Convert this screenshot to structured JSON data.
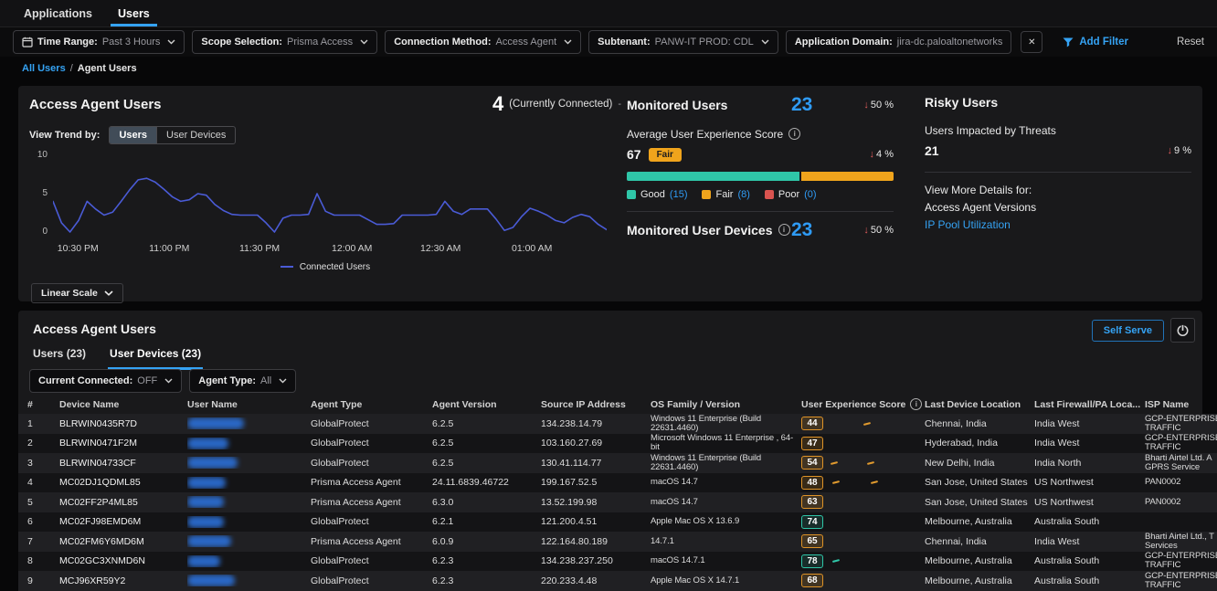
{
  "icons": {
    "down_arrow": "↓",
    "info": "i",
    "close": "✕"
  },
  "colors": {
    "accent": "#35a3f4",
    "value_blue": "#2f9bf5",
    "chart_line": "#4a5bd6",
    "good": "#2fc6a8",
    "fair": "#f0a41c",
    "poor": "#d9534f",
    "trend_down": "#e25d5d"
  },
  "app": {
    "tabs": [
      {
        "label": "Applications",
        "active": false
      },
      {
        "label": "Users",
        "active": true
      }
    ],
    "filter_bar": {
      "pills": [
        {
          "label": "Time Range:",
          "value": "Past 3 Hours"
        },
        {
          "label": "Scope Selection:",
          "value": "Prisma Access"
        },
        {
          "label": "Connection Method:",
          "value": "Access Agent"
        },
        {
          "label": "Subtenant:",
          "value": "PANW-IT PROD: CDL"
        },
        {
          "label": "Application Domain:",
          "value": "jira-dc.paloaltonetworks"
        }
      ],
      "add_filter_label": "Add Filter",
      "reset_label": "Reset"
    },
    "breadcrumb": {
      "parent": "All Users",
      "separator": "/",
      "current": "Agent Users"
    }
  },
  "overview": {
    "title": "Access Agent Users",
    "connected_value": "4",
    "connected_label": "(Currently Connected)",
    "connected_trend": "-",
    "view_trend_label": "View Trend by:",
    "trend_options": [
      {
        "label": "Users",
        "active": true
      },
      {
        "label": "User Devices",
        "active": false
      }
    ],
    "scale_button": "Linear Scale",
    "chart_data": {
      "type": "line",
      "title": "Connected Users trend",
      "xlabel": "",
      "ylabel": "",
      "ylim": [
        0,
        10
      ],
      "grid": false,
      "legend_position": "bottom",
      "y_ticks": [
        10,
        5,
        0
      ],
      "x_ticks": [
        {
          "label": "10:30 PM",
          "pos": 4.5
        },
        {
          "label": "11:00 PM",
          "pos": 21
        },
        {
          "label": "11:30 PM",
          "pos": 37.3
        },
        {
          "label": "12:00 AM",
          "pos": 54
        },
        {
          "label": "12:30 AM",
          "pos": 70
        },
        {
          "label": "01:00 AM",
          "pos": 86.5
        }
      ],
      "series": [
        {
          "name": "Connected Users",
          "color": "#4a5bd6",
          "values": [
            4,
            1.2,
            0,
            1.5,
            4,
            3,
            2.2,
            2.6,
            4,
            5.5,
            6.8,
            7,
            6.5,
            5.6,
            4.6,
            4,
            4.2,
            5,
            4.8,
            3.6,
            2.8,
            2.3,
            2.2,
            2.2,
            2.2,
            1.2,
            0,
            1.8,
            2.2,
            2.2,
            2.3,
            5,
            2.7,
            2.2,
            2.2,
            2.2,
            2.2,
            1.6,
            1,
            1,
            1.1,
            2.2,
            2.2,
            2.2,
            2.2,
            2.3,
            4,
            2.7,
            2.3,
            3,
            3,
            3,
            1.7,
            0.2,
            0.6,
            2,
            3.1,
            2.7,
            2.2,
            1.5,
            1.2,
            1.9,
            2.3,
            2,
            1,
            0.3
          ]
        }
      ]
    }
  },
  "monitored": {
    "users_title": "Monitored Users",
    "users_value": "23",
    "users_trend": "50 %",
    "avg_title": "Average User Experience Score",
    "avg_value": "67",
    "avg_badge": "Fair",
    "avg_trend": "4 %",
    "segments": [
      {
        "label": "Good",
        "count": 15,
        "color": "#2fc6a8"
      },
      {
        "label": "Fair",
        "count": 8,
        "color": "#f0a41c"
      },
      {
        "label": "Poor",
        "count": 0,
        "color": "#d9534f"
      }
    ],
    "devices_title": "Monitored User Devices",
    "devices_value": "23",
    "devices_trend": "50 %"
  },
  "risky": {
    "title": "Risky Users",
    "impacted_label": "Users Impacted by Threats",
    "impacted_value": "21",
    "impacted_trend": "9 %",
    "more_label": "View More Details for:",
    "link_versions": "Access Agent Versions",
    "link_ip_pool": "IP Pool Utilization"
  },
  "table_panel": {
    "title": "Access Agent Users",
    "tabs": [
      {
        "label": "Users (23)",
        "active": false
      },
      {
        "label": "User Devices (23)",
        "active": true
      }
    ],
    "filters": [
      {
        "label": "Current Connected:",
        "value": "OFF"
      },
      {
        "label": "Agent Type:",
        "value": "All"
      }
    ],
    "self_serve_label": "Self Serve",
    "columns": [
      "#",
      "Device Name",
      "User Name",
      "Agent Type",
      "Agent Version",
      "Source IP Address",
      "OS Family / Version",
      "User Experience Score",
      "Last Device Location",
      "Last Firewall/PA Loca...",
      "ISP Name"
    ],
    "rows": [
      {
        "num": "1",
        "device": "BLRWIN0435R7D",
        "user_redacted_width": 62,
        "agent_type": "GlobalProtect",
        "agent_version": "6.2.5",
        "source_ip": "134.238.14.79",
        "os": "Windows 11 Enterprise (Build 22631.4460)",
        "score": "44",
        "score_level": "fair",
        "spark": [
          44
        ],
        "location": "Chennai, India",
        "firewall": "India West",
        "isp": "GCP-ENTERPRISE TRAFFIC"
      },
      {
        "num": "2",
        "device": "BLRWIN0471F2M",
        "user_redacted_width": 45,
        "agent_type": "GlobalProtect",
        "agent_version": "6.2.5",
        "source_ip": "103.160.27.69",
        "os": "Microsoft Windows 11 Enterprise , 64-bit",
        "score": "47",
        "score_level": "fair",
        "spark": [],
        "location": "Hyderabad, India",
        "firewall": "India West",
        "isp": "GCP-ENTERPRISE TRAFFIC"
      },
      {
        "num": "3",
        "device": "BLRWIN04733CF",
        "user_redacted_width": 55,
        "agent_type": "GlobalProtect",
        "agent_version": "6.2.5",
        "source_ip": "130.41.114.77",
        "os": "Windows 11 Enterprise (Build 22631.4460)",
        "score": "54",
        "score_level": "fair",
        "spark": [
          8,
          48
        ],
        "location": "New Delhi, India",
        "firewall": "India North",
        "isp": "Bharti Airtel Ltd. A GPRS Service"
      },
      {
        "num": "4",
        "device": "MC02DJ1QDML85",
        "user_redacted_width": 42,
        "agent_type": "Prisma Access Agent",
        "agent_version": "24.11.6839.46722",
        "source_ip": "199.167.52.5",
        "os": "macOS 14.7",
        "score": "48",
        "score_level": "fair",
        "spark": [
          10,
          52
        ],
        "location": "San Jose, United States",
        "firewall": "US Northwest",
        "isp": "PAN0002"
      },
      {
        "num": "5",
        "device": "MC02FF2P4ML85",
        "user_redacted_width": 40,
        "agent_type": "Prisma Access Agent",
        "agent_version": "6.3.0",
        "source_ip": "13.52.199.98",
        "os": "macOS 14.7",
        "score": "63",
        "score_level": "fair",
        "spark": [],
        "location": "San Jose, United States",
        "firewall": "US Northwest",
        "isp": "PAN0002"
      },
      {
        "num": "6",
        "device": "MC02FJ98EMD6M",
        "user_redacted_width": 40,
        "agent_type": "GlobalProtect",
        "agent_version": "6.2.1",
        "source_ip": "121.200.4.51",
        "os": "Apple Mac OS X 13.6.9",
        "score": "74",
        "score_level": "good",
        "spark": [],
        "location": "Melbourne, Australia",
        "firewall": "Australia South",
        "isp": ""
      },
      {
        "num": "7",
        "device": "MC02FM6Y6MD6M",
        "user_redacted_width": 48,
        "agent_type": "Prisma Access Agent",
        "agent_version": "6.0.9",
        "source_ip": "122.164.80.189",
        "os": "14.7.1",
        "score": "65",
        "score_level": "fair",
        "spark": [],
        "location": "Chennai, India",
        "firewall": "India West",
        "isp": "Bharti Airtel Ltd., T Services"
      },
      {
        "num": "8",
        "device": "MC02GC3XNMD6N",
        "user_redacted_width": 36,
        "agent_type": "GlobalProtect",
        "agent_version": "6.2.3",
        "source_ip": "134.238.237.250",
        "os": "macOS 14.7.1",
        "score": "78",
        "score_level": "good",
        "spark": [
          10
        ],
        "location": "Melbourne, Australia",
        "firewall": "Australia South",
        "isp": "GCP-ENTERPRISE TRAFFIC"
      },
      {
        "num": "9",
        "device": "MCJ96XR59Y2",
        "user_redacted_width": 52,
        "agent_type": "GlobalProtect",
        "agent_version": "6.2.3",
        "source_ip": "220.233.4.48",
        "os": "Apple Mac OS X 14.7.1",
        "score": "68",
        "score_level": "fair",
        "spark": [],
        "location": "Melbourne, Australia",
        "firewall": "Australia South",
        "isp": "GCP-ENTERPRISE TRAFFIC"
      }
    ]
  }
}
